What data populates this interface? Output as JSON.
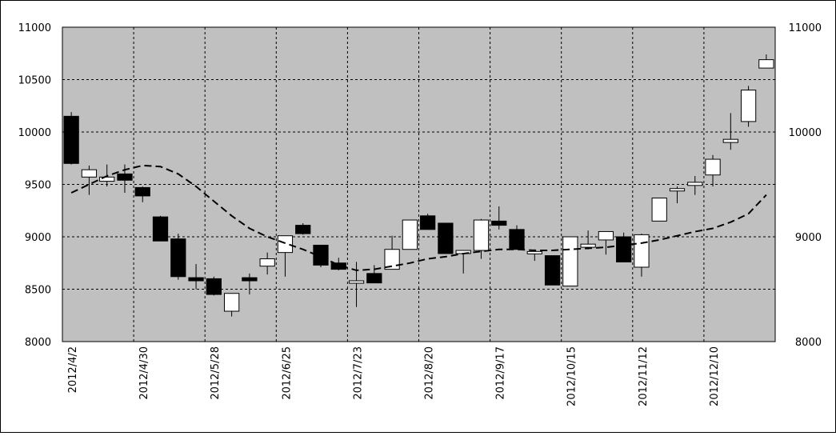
{
  "chart_data": {
    "type": "candlestick",
    "title": "",
    "xlabel": "",
    "ylabel": "",
    "ylim": [
      8000,
      11000
    ],
    "yticks": [
      8000,
      8500,
      9000,
      9500,
      10000,
      10500,
      11000
    ],
    "ytick_labels": [
      "8000",
      "8500",
      "9000",
      "9500",
      "10000",
      "10500",
      "11000"
    ],
    "right_yticks": [
      8000,
      9000,
      10000,
      11000
    ],
    "right_ytick_labels": [
      "8000",
      "9000",
      "10000",
      "11000"
    ],
    "x_tick_labels": [
      "2012/4/2",
      "2012/4/30",
      "2012/5/28",
      "2012/6/25",
      "2012/7/23",
      "2012/8/20",
      "2012/9/17",
      "2012/10/15",
      "2012/11/12",
      "2012/12/10"
    ],
    "x_tick_every": 4,
    "grid": true,
    "colors": {
      "plot_background": "#c0c0c0",
      "up_body": "#ffffff",
      "down_body": "#000000",
      "ma_line": "#000000"
    },
    "series": [
      {
        "candles": [
          {
            "open": 10150,
            "high": 10190,
            "low": 9690,
            "close": 9700
          },
          {
            "open": 9570,
            "high": 9680,
            "low": 9400,
            "close": 9640
          },
          {
            "open": 9530,
            "high": 9690,
            "low": 9480,
            "close": 9570
          },
          {
            "open": 9600,
            "high": 9690,
            "low": 9420,
            "close": 9540
          },
          {
            "open": 9470,
            "high": 9480,
            "low": 9330,
            "close": 9390
          },
          {
            "open": 9190,
            "high": 9200,
            "low": 8960,
            "close": 8960
          },
          {
            "open": 8980,
            "high": 9030,
            "low": 8590,
            "close": 8620
          },
          {
            "open": 8610,
            "high": 8740,
            "low": 8500,
            "close": 8580
          },
          {
            "open": 8600,
            "high": 8620,
            "low": 8440,
            "close": 8450
          },
          {
            "open": 8290,
            "high": 8460,
            "low": 8240,
            "close": 8460
          },
          {
            "open": 8610,
            "high": 8650,
            "low": 8450,
            "close": 8580
          },
          {
            "open": 8720,
            "high": 8850,
            "low": 8640,
            "close": 8790
          },
          {
            "open": 8850,
            "high": 9010,
            "low": 8620,
            "close": 9010
          },
          {
            "open": 9110,
            "high": 9130,
            "low": 9020,
            "close": 9030
          },
          {
            "open": 8920,
            "high": 8920,
            "low": 8710,
            "close": 8730
          },
          {
            "open": 8750,
            "high": 8800,
            "low": 8680,
            "close": 8690
          },
          {
            "open": 8570,
            "high": 8760,
            "low": 8330,
            "close": 8580
          },
          {
            "open": 8650,
            "high": 8730,
            "low": 8560,
            "close": 8560
          },
          {
            "open": 8690,
            "high": 9010,
            "low": 8690,
            "close": 8880
          },
          {
            "open": 8880,
            "high": 9160,
            "low": 8880,
            "close": 9160
          },
          {
            "open": 9200,
            "high": 9220,
            "low": 9070,
            "close": 9070
          },
          {
            "open": 9130,
            "high": 9130,
            "low": 8840,
            "close": 8840
          },
          {
            "open": 8840,
            "high": 8870,
            "low": 8650,
            "close": 8870
          },
          {
            "open": 8870,
            "high": 9170,
            "low": 8790,
            "close": 9160
          },
          {
            "open": 9150,
            "high": 9290,
            "low": 9070,
            "close": 9110
          },
          {
            "open": 9070,
            "high": 9110,
            "low": 8880,
            "close": 8880
          },
          {
            "open": 8840,
            "high": 8880,
            "low": 8770,
            "close": 8860
          },
          {
            "open": 8820,
            "high": 8820,
            "low": 8540,
            "close": 8540
          },
          {
            "open": 8530,
            "high": 9000,
            "low": 8530,
            "close": 9000
          },
          {
            "open": 8900,
            "high": 9060,
            "low": 8880,
            "close": 8930
          },
          {
            "open": 8970,
            "high": 9050,
            "low": 8830,
            "close": 9050
          },
          {
            "open": 9000,
            "high": 9040,
            "low": 8760,
            "close": 8760
          },
          {
            "open": 8710,
            "high": 9030,
            "low": 8620,
            "close": 9020
          },
          {
            "open": 9150,
            "high": 9370,
            "low": 9150,
            "close": 9370
          },
          {
            "open": 9450,
            "high": 9480,
            "low": 9320,
            "close": 9460
          },
          {
            "open": 9490,
            "high": 9580,
            "low": 9400,
            "close": 9520
          },
          {
            "open": 9590,
            "high": 9780,
            "low": 9480,
            "close": 9740
          },
          {
            "open": 9900,
            "high": 10180,
            "low": 9830,
            "close": 9930
          },
          {
            "open": 10100,
            "high": 10440,
            "low": 10050,
            "close": 10400
          },
          {
            "open": 10610,
            "high": 10740,
            "low": 10610,
            "close": 10690
          }
        ]
      },
      {
        "values": [
          9420,
          9500,
          9580,
          9640,
          9680,
          9670,
          9600,
          9480,
          9340,
          9200,
          9080,
          9000,
          8940,
          8880,
          8810,
          8730,
          8680,
          8690,
          8720,
          8750,
          8790,
          8810,
          8840,
          8860,
          8880,
          8880,
          8870,
          8870,
          8880,
          8890,
          8900,
          8920,
          8940,
          8970,
          9010,
          9050,
          9080,
          9140,
          9220,
          9400
        ]
      }
    ]
  }
}
